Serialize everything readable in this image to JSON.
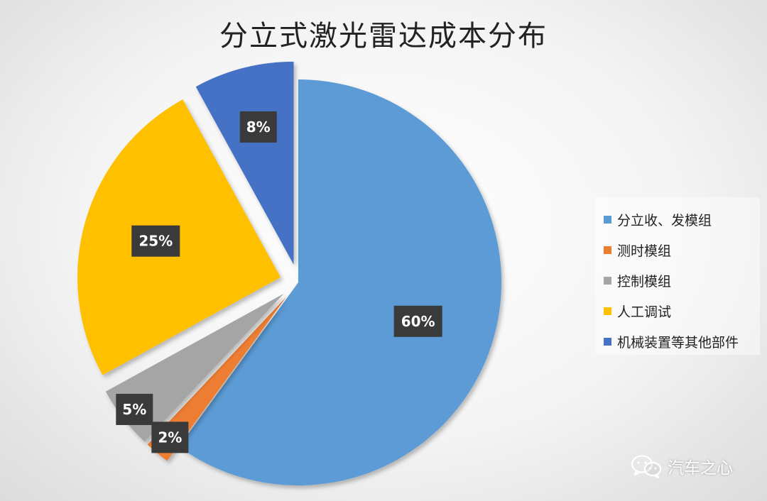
{
  "chart_data": {
    "type": "pie",
    "title": "分立式激光雷达成本分布",
    "legend_position": "right",
    "slices": [
      {
        "name": "分立收、发模组",
        "value": 60,
        "label": "60%",
        "color": "#5b9bd5"
      },
      {
        "name": "测时模组",
        "value": 2,
        "label": "2%",
        "color": "#ed7d31"
      },
      {
        "name": "控制模组",
        "value": 5,
        "label": "5%",
        "color": "#a5a5a5"
      },
      {
        "name": "人工调试",
        "value": 25,
        "label": "25%",
        "color": "#ffc000"
      },
      {
        "name": "机械装置等其他部件",
        "value": 8,
        "label": "8%",
        "color": "#4472c4"
      }
    ]
  },
  "watermark": {
    "text": "汽车之心",
    "icon": "wechat-icon"
  }
}
